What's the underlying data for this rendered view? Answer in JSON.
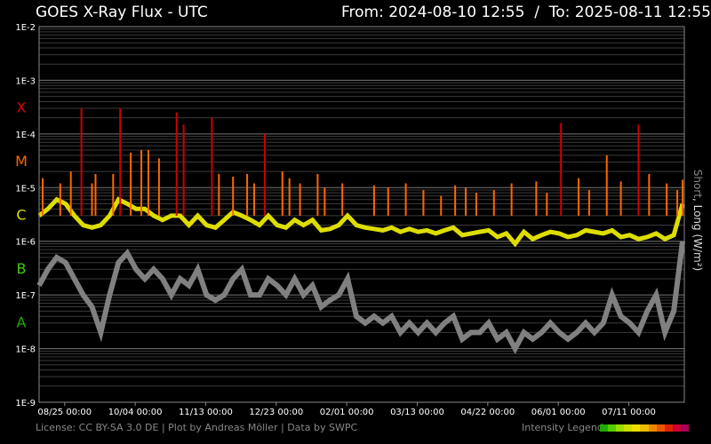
{
  "header": {
    "title": "GOES X-Ray Flux - UTC",
    "range": "From: 2024-08-10 12:55  /  To: 2025-08-11 12:55"
  },
  "footer": {
    "license": "License: CC BY-SA 3.0 DE | Plot by Andreas Möller | Data by SWPC",
    "legend_label": "Intensity Legend",
    "legend_colors": [
      "#22aa00",
      "#55cc00",
      "#99dd00",
      "#ccdd00",
      "#eedd00",
      "#eebb00",
      "#ee8800",
      "#ee5500",
      "#dd2200",
      "#cc0033",
      "#aa0055"
    ]
  },
  "chart_data": {
    "type": "line",
    "title": "GOES X-Ray Flux - UTC",
    "ylabel_short": "Short",
    "ylabel_long": ", Long (W/m²)",
    "yscale": "log",
    "ylim": [
      1e-09,
      0.01
    ],
    "y_ticks": [
      "1E-9",
      "1E-8",
      "1E-7",
      "1E-6",
      "1E-5",
      "1E-4",
      "1E-3",
      "1E-2"
    ],
    "x_ticks": [
      "08/25 00:00",
      "10/04 00:00",
      "11/13 00:00",
      "12/23 00:00",
      "02/01 00:00",
      "03/13 00:00",
      "04/22 00:00",
      "06/01 00:00",
      "07/11 00:00"
    ],
    "xlim": [
      "2024-08-10 12:55",
      "2025-08-11 12:55"
    ],
    "classes": [
      {
        "name": "X",
        "color": "#dd0000"
      },
      {
        "name": "M",
        "color": "#ff6600"
      },
      {
        "name": "C",
        "color": "#dddd00"
      },
      {
        "name": "B",
        "color": "#44cc00"
      },
      {
        "name": "A",
        "color": "#22aa00"
      }
    ],
    "grid": true,
    "series": [
      {
        "name": "Short",
        "color": "#808080",
        "x_days": [
          0,
          5,
          10,
          15,
          20,
          25,
          30,
          35,
          40,
          45,
          50,
          55,
          60,
          65,
          70,
          75,
          80,
          85,
          90,
          95,
          100,
          105,
          110,
          115,
          120,
          125,
          130,
          135,
          140,
          145,
          150,
          155,
          160,
          165,
          170,
          175,
          180,
          185,
          190,
          195,
          200,
          205,
          210,
          215,
          220,
          225,
          230,
          235,
          240,
          245,
          250,
          255,
          260,
          265,
          270,
          275,
          280,
          285,
          290,
          295,
          300,
          305,
          310,
          315,
          320,
          325,
          330,
          335,
          340,
          345,
          350,
          355,
          360,
          365
        ],
        "values": [
          1.5e-07,
          3e-07,
          5e-07,
          4e-07,
          2e-07,
          1e-07,
          6e-08,
          2e-08,
          1e-07,
          4e-07,
          6e-07,
          3e-07,
          2e-07,
          3e-07,
          2e-07,
          1e-07,
          2e-07,
          1.5e-07,
          3e-07,
          1e-07,
          8e-08,
          1e-07,
          2e-07,
          3e-07,
          1e-07,
          1e-07,
          2e-07,
          1.5e-07,
          1e-07,
          2e-07,
          1e-07,
          1.5e-07,
          6e-08,
          8e-08,
          1e-07,
          2e-07,
          4e-08,
          3e-08,
          4e-08,
          3e-08,
          4e-08,
          2e-08,
          3e-08,
          2e-08,
          3e-08,
          2e-08,
          3e-08,
          4e-08,
          1.5e-08,
          2e-08,
          2e-08,
          3e-08,
          1.5e-08,
          2e-08,
          1e-08,
          2e-08,
          1.5e-08,
          2e-08,
          3e-08,
          2e-08,
          1.5e-08,
          2e-08,
          3e-08,
          2e-08,
          3e-08,
          1e-07,
          4e-08,
          3e-08,
          2e-08,
          5e-08,
          1e-07,
          2e-08,
          5e-08,
          1e-06
        ]
      },
      {
        "name": "Long",
        "color": "#dddd00",
        "x_days": [
          0,
          5,
          10,
          15,
          20,
          25,
          30,
          35,
          40,
          45,
          50,
          55,
          60,
          65,
          70,
          75,
          80,
          85,
          90,
          95,
          100,
          105,
          110,
          115,
          120,
          125,
          130,
          135,
          140,
          145,
          150,
          155,
          160,
          165,
          170,
          175,
          180,
          185,
          190,
          195,
          200,
          205,
          210,
          215,
          220,
          225,
          230,
          235,
          240,
          245,
          250,
          255,
          260,
          265,
          270,
          275,
          280,
          285,
          290,
          295,
          300,
          305,
          310,
          315,
          320,
          325,
          330,
          335,
          340,
          345,
          350,
          355,
          360,
          365
        ],
        "values": [
          3e-06,
          4e-06,
          6e-06,
          5e-06,
          3e-06,
          2e-06,
          1.8e-06,
          2e-06,
          3e-06,
          6e-06,
          5e-06,
          4e-06,
          4e-06,
          3e-06,
          2.5e-06,
          3e-06,
          3e-06,
          2e-06,
          3e-06,
          2e-06,
          1.8e-06,
          2.5e-06,
          3.5e-06,
          3e-06,
          2.5e-06,
          2e-06,
          3e-06,
          2e-06,
          1.8e-06,
          2.5e-06,
          2e-06,
          2.5e-06,
          1.6e-06,
          1.7e-06,
          2e-06,
          3e-06,
          2e-06,
          1.8e-06,
          1.7e-06,
          1.6e-06,
          1.8e-06,
          1.5e-06,
          1.7e-06,
          1.5e-06,
          1.6e-06,
          1.4e-06,
          1.6e-06,
          1.8e-06,
          1.3e-06,
          1.4e-06,
          1.5e-06,
          1.6e-06,
          1.2e-06,
          1.4e-06,
          9e-07,
          1.5e-06,
          1.1e-06,
          1.3e-06,
          1.5e-06,
          1.4e-06,
          1.2e-06,
          1.3e-06,
          1.6e-06,
          1.5e-06,
          1.4e-06,
          1.6e-06,
          1.2e-06,
          1.3e-06,
          1.1e-06,
          1.2e-06,
          1.4e-06,
          1.1e-06,
          1.3e-06,
          5e-06
        ]
      },
      {
        "name": "Peaks",
        "color": "#ff6600",
        "x_days": [
          2,
          12,
          18,
          24,
          30,
          32,
          42,
          46,
          52,
          58,
          62,
          68,
          78,
          82,
          98,
          102,
          110,
          118,
          122,
          128,
          138,
          142,
          148,
          158,
          162,
          172,
          190,
          198,
          208,
          218,
          228,
          236,
          242,
          248,
          258,
          268,
          282,
          288,
          296,
          306,
          312,
          322,
          330,
          340,
          346,
          356,
          362,
          365
        ],
        "values": [
          1.5e-05,
          1.2e-05,
          2e-05,
          0.0003,
          1.2e-05,
          1.8e-05,
          1.8e-05,
          0.0003,
          4.5e-05,
          5e-05,
          5e-05,
          3.5e-05,
          0.00025,
          0.00015,
          0.0002,
          1.8e-05,
          1.6e-05,
          1.8e-05,
          1.2e-05,
          0.0001,
          2e-05,
          1.5e-05,
          1.2e-05,
          1.8e-05,
          1e-05,
          1.2e-05,
          1.1e-05,
          1e-05,
          1.2e-05,
          9e-06,
          7e-06,
          1.1e-05,
          1e-05,
          8e-06,
          9e-06,
          1.2e-05,
          1.3e-05,
          8e-06,
          0.00016,
          1.5e-05,
          9e-06,
          4e-05,
          1.3e-05,
          0.00015,
          1.8e-05,
          1.2e-05,
          9e-06,
          1.4e-05
        ]
      }
    ]
  }
}
